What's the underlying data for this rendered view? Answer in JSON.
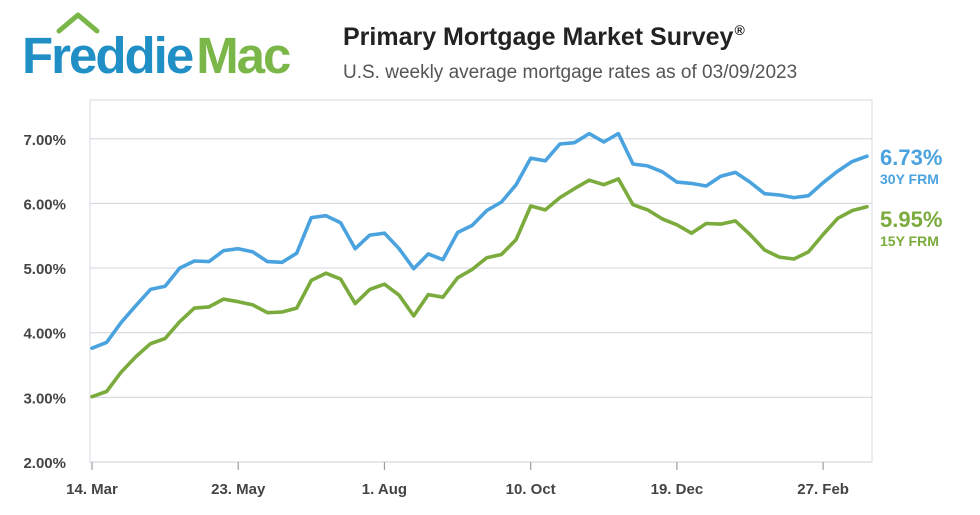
{
  "header": {
    "logo_text": "FreddieMac",
    "title": "Primary Mortgage Market Survey",
    "title_mark": "®",
    "subtitle": "U.S. weekly average mortgage rates as of 03/09/2023"
  },
  "colors": {
    "logo_blue": "#1f8fc5",
    "logo_green": "#7ab648",
    "series_30y": "#4aa3df",
    "series_15y": "#7aab3c",
    "grid": "#d7dbe0",
    "axis_text": "#444444"
  },
  "chart_data": {
    "type": "line",
    "x_tick_labels": [
      "14. Mar",
      "23. May",
      "1. Aug",
      "10. Oct",
      "19. Dec",
      "27. Feb"
    ],
    "y_tick_labels": [
      "2.00%",
      "3.00%",
      "4.00%",
      "5.00%",
      "6.00%",
      "7.00%"
    ],
    "ylim": [
      2.0,
      7.6
    ],
    "grid": true,
    "series": [
      {
        "name": "30Y FRM",
        "end_value_label": "6.73%",
        "values": [
          3.76,
          3.85,
          4.16,
          4.42,
          4.67,
          4.72,
          5.0,
          5.11,
          5.1,
          5.27,
          5.3,
          5.25,
          5.1,
          5.09,
          5.23,
          5.78,
          5.81,
          5.7,
          5.3,
          5.51,
          5.54,
          5.3,
          4.99,
          5.22,
          5.13,
          5.55,
          5.66,
          5.89,
          6.02,
          6.29,
          6.7,
          6.66,
          6.92,
          6.94,
          7.08,
          6.95,
          7.08,
          6.61,
          6.58,
          6.49,
          6.33,
          6.31,
          6.27,
          6.42,
          6.48,
          6.33,
          6.15,
          6.13,
          6.09,
          6.12,
          6.32,
          6.5,
          6.65,
          6.73
        ]
      },
      {
        "name": "15Y FRM",
        "end_value_label": "5.95%",
        "values": [
          3.01,
          3.09,
          3.39,
          3.63,
          3.83,
          3.91,
          4.17,
          4.38,
          4.4,
          4.52,
          4.48,
          4.43,
          4.31,
          4.32,
          4.38,
          4.81,
          4.92,
          4.83,
          4.45,
          4.67,
          4.75,
          4.58,
          4.26,
          4.59,
          4.55,
          4.85,
          4.98,
          5.16,
          5.21,
          5.44,
          5.96,
          5.9,
          6.09,
          6.23,
          6.36,
          6.29,
          6.38,
          5.98,
          5.9,
          5.76,
          5.67,
          5.54,
          5.69,
          5.68,
          5.73,
          5.52,
          5.28,
          5.17,
          5.14,
          5.25,
          5.52,
          5.77,
          5.89,
          5.95
        ]
      }
    ]
  }
}
